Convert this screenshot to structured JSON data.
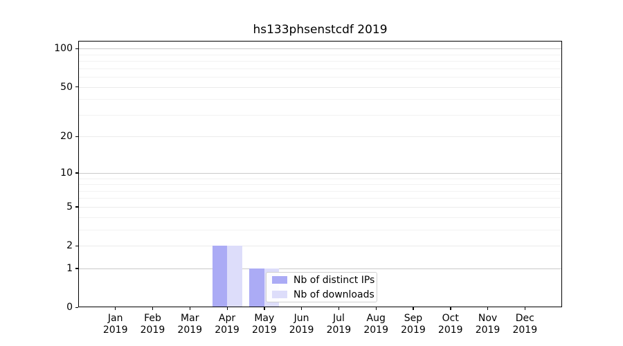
{
  "chart_data": {
    "type": "bar",
    "title": "hs133phsenstcdf 2019",
    "x_categories": [
      {
        "month": "Jan",
        "year": "2019"
      },
      {
        "month": "Feb",
        "year": "2019"
      },
      {
        "month": "Mar",
        "year": "2019"
      },
      {
        "month": "Apr",
        "year": "2019"
      },
      {
        "month": "May",
        "year": "2019"
      },
      {
        "month": "Jun",
        "year": "2019"
      },
      {
        "month": "Jul",
        "year": "2019"
      },
      {
        "month": "Aug",
        "year": "2019"
      },
      {
        "month": "Sep",
        "year": "2019"
      },
      {
        "month": "Oct",
        "year": "2019"
      },
      {
        "month": "Nov",
        "year": "2019"
      },
      {
        "month": "Dec",
        "year": "2019"
      }
    ],
    "series": [
      {
        "name": "Nb of distinct IPs",
        "color": "#ababf5",
        "values": [
          0,
          0,
          0,
          2,
          1,
          0,
          0,
          0,
          0,
          0,
          0,
          0
        ]
      },
      {
        "name": "Nb of downloads",
        "color": "#ddddfa",
        "values": [
          0,
          0,
          0,
          2,
          1,
          0,
          0,
          0,
          0,
          0,
          0,
          0
        ]
      }
    ],
    "y_scale": "log1p",
    "y_ticks": [
      0,
      1,
      2,
      5,
      10,
      20,
      50,
      100
    ],
    "y_major_gridline_values": [
      1,
      10,
      100
    ],
    "y_minor_gridline_values": [
      3,
      4,
      6,
      7,
      8,
      9,
      30,
      40,
      60,
      70,
      80,
      90
    ],
    "ylim": [
      0,
      115
    ],
    "grid": true,
    "legend_position": "lower center-right inside plot",
    "colors": {
      "major_grid": "#c9c9c9",
      "mid_grid": "#ebebeb",
      "minor_grid": "#f2f2f2",
      "axis": "#000000",
      "legend_border": "#cfcfcf"
    }
  }
}
